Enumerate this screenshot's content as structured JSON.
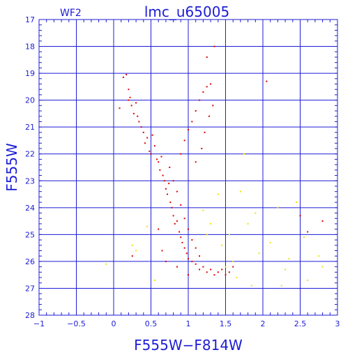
{
  "chart_data": {
    "type": "scatter",
    "title": "lmc_u65005",
    "subtitle": "WF2",
    "xlabel": "F555W−F814W",
    "ylabel": "F555W",
    "xlim": [
      -1,
      3
    ],
    "ylim": [
      28,
      17
    ],
    "y_inverted": true,
    "grid": true,
    "x_ticks": [
      -1,
      -0.5,
      0,
      0.5,
      1,
      1.5,
      2,
      2.5,
      3
    ],
    "x_tick_labels": [
      "−1",
      "−0.5",
      "0",
      "0.5",
      "1",
      "1.5",
      "2",
      "2.5",
      "3"
    ],
    "y_ticks": [
      17,
      18,
      19,
      20,
      21,
      22,
      23,
      24,
      25,
      26,
      27,
      28
    ],
    "y_tick_labels": [
      "17",
      "18",
      "19",
      "20",
      "21",
      "22",
      "23",
      "24",
      "25",
      "26",
      "27",
      "28"
    ],
    "colors": {
      "axis": "#1c1cd6",
      "grid": "#1c1cd6",
      "series_main": "#e00000",
      "series_faint": "#f0e000"
    },
    "series": [
      {
        "color": "#e00000",
        "points": [
          [
            0.13,
            19.15
          ],
          [
            0.17,
            19.05
          ],
          [
            0.2,
            19.6
          ],
          [
            0.2,
            20.0
          ],
          [
            0.22,
            19.9
          ],
          [
            0.24,
            20.2
          ],
          [
            0.27,
            20.5
          ],
          [
            0.3,
            20.1
          ],
          [
            0.32,
            20.6
          ],
          [
            0.34,
            20.8
          ],
          [
            0.37,
            21.0
          ],
          [
            0.4,
            21.2
          ],
          [
            0.42,
            21.6
          ],
          [
            0.45,
            21.4
          ],
          [
            0.48,
            21.9
          ],
          [
            0.5,
            22.0
          ],
          [
            0.52,
            21.3
          ],
          [
            0.55,
            21.7
          ],
          [
            0.58,
            22.2
          ],
          [
            0.6,
            22.3
          ],
          [
            0.62,
            22.6
          ],
          [
            0.64,
            22.1
          ],
          [
            0.66,
            22.8
          ],
          [
            0.68,
            23.0
          ],
          [
            0.7,
            23.3
          ],
          [
            0.72,
            23.5
          ],
          [
            0.74,
            23.1
          ],
          [
            0.76,
            23.8
          ],
          [
            0.78,
            24.0
          ],
          [
            0.8,
            24.3
          ],
          [
            0.82,
            24.6
          ],
          [
            0.85,
            24.5
          ],
          [
            0.88,
            24.9
          ],
          [
            0.9,
            25.1
          ],
          [
            0.92,
            25.3
          ],
          [
            0.95,
            25.5
          ],
          [
            0.98,
            25.7
          ],
          [
            1.0,
            25.9
          ],
          [
            1.05,
            26.0
          ],
          [
            1.1,
            26.1
          ],
          [
            1.15,
            26.3
          ],
          [
            1.2,
            26.2
          ],
          [
            1.25,
            26.4
          ],
          [
            1.3,
            26.3
          ],
          [
            1.35,
            26.5
          ],
          [
            1.4,
            26.4
          ],
          [
            1.45,
            26.3
          ],
          [
            1.5,
            26.5
          ],
          [
            1.55,
            26.4
          ],
          [
            1.6,
            26.2
          ],
          [
            0.75,
            22.5
          ],
          [
            0.8,
            23.0
          ],
          [
            0.85,
            23.4
          ],
          [
            0.9,
            23.9
          ],
          [
            0.95,
            24.4
          ],
          [
            1.0,
            24.8
          ],
          [
            1.05,
            25.2
          ],
          [
            1.1,
            25.5
          ],
          [
            1.15,
            25.8
          ],
          [
            0.9,
            22.0
          ],
          [
            0.95,
            21.5
          ],
          [
            1.0,
            21.1
          ],
          [
            1.05,
            20.8
          ],
          [
            1.1,
            20.4
          ],
          [
            1.15,
            20.0
          ],
          [
            1.2,
            19.7
          ],
          [
            1.25,
            19.5
          ],
          [
            1.3,
            19.4
          ],
          [
            1.33,
            20.2
          ],
          [
            1.28,
            20.6
          ],
          [
            1.22,
            21.2
          ],
          [
            1.18,
            21.8
          ],
          [
            1.1,
            22.3
          ],
          [
            1.35,
            18.0
          ],
          [
            1.25,
            18.4
          ],
          [
            2.05,
            19.3
          ],
          [
            2.5,
            24.3
          ],
          [
            2.6,
            24.9
          ],
          [
            2.8,
            24.5
          ],
          [
            0.08,
            20.3
          ],
          [
            0.25,
            25.8
          ],
          [
            0.6,
            24.8
          ],
          [
            0.65,
            25.6
          ],
          [
            0.7,
            26.0
          ],
          [
            0.85,
            26.2
          ],
          [
            1.0,
            26.5
          ]
        ]
      },
      {
        "color": "#f0e000",
        "points": [
          [
            -0.1,
            26.1
          ],
          [
            0.25,
            25.4
          ],
          [
            0.3,
            25.6
          ],
          [
            0.45,
            24.7
          ],
          [
            0.55,
            26.7
          ],
          [
            1.3,
            24.6
          ],
          [
            1.4,
            23.5
          ],
          [
            1.55,
            25.0
          ],
          [
            1.6,
            26.0
          ],
          [
            1.7,
            23.4
          ],
          [
            1.75,
            22.0
          ],
          [
            1.8,
            24.6
          ],
          [
            1.9,
            24.2
          ],
          [
            1.95,
            25.7
          ],
          [
            2.1,
            25.3
          ],
          [
            2.2,
            24.0
          ],
          [
            2.3,
            26.3
          ],
          [
            2.35,
            25.9
          ],
          [
            2.45,
            23.8
          ],
          [
            2.55,
            25.1
          ],
          [
            2.6,
            26.7
          ],
          [
            2.75,
            25.8
          ],
          [
            2.8,
            26.2
          ],
          [
            1.2,
            24.1
          ],
          [
            1.65,
            26.6
          ],
          [
            1.85,
            26.9
          ],
          [
            2.25,
            26.9
          ],
          [
            1.45,
            25.4
          ],
          [
            1.5,
            26.2
          ],
          [
            1.25,
            25.0
          ]
        ]
      }
    ]
  }
}
